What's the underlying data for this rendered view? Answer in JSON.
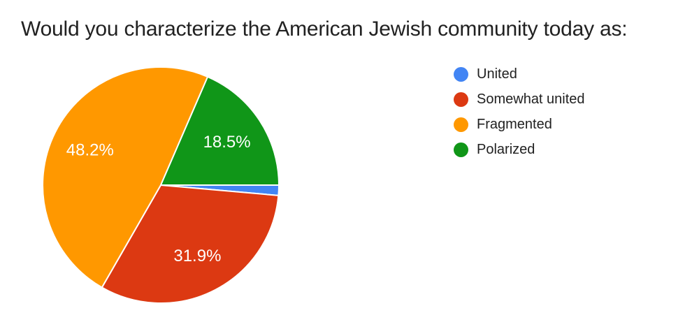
{
  "page": {
    "background": "#ffffff"
  },
  "chart_data": {
    "type": "pie",
    "title": "Would you characterize the American Jewish community today as:",
    "legend_position": "right",
    "start_angle_deg": 90,
    "direction": "clockwise",
    "grid": false,
    "title_color": "#212121",
    "legend_text_color": "#212121",
    "slice_label_color": "#ffffff",
    "slice_border_color": "#ffffff",
    "slices": [
      {
        "label": "United",
        "value": 1.4,
        "color": "#4285F4",
        "data_label": ""
      },
      {
        "label": "Somewhat united",
        "value": 31.9,
        "color": "#DC3912",
        "data_label": "31.9%"
      },
      {
        "label": "Fragmented",
        "value": 48.2,
        "color": "#FF9800",
        "data_label": "48.2%"
      },
      {
        "label": "Polarized",
        "value": 18.5,
        "color": "#109618",
        "data_label": "18.5%"
      }
    ]
  }
}
